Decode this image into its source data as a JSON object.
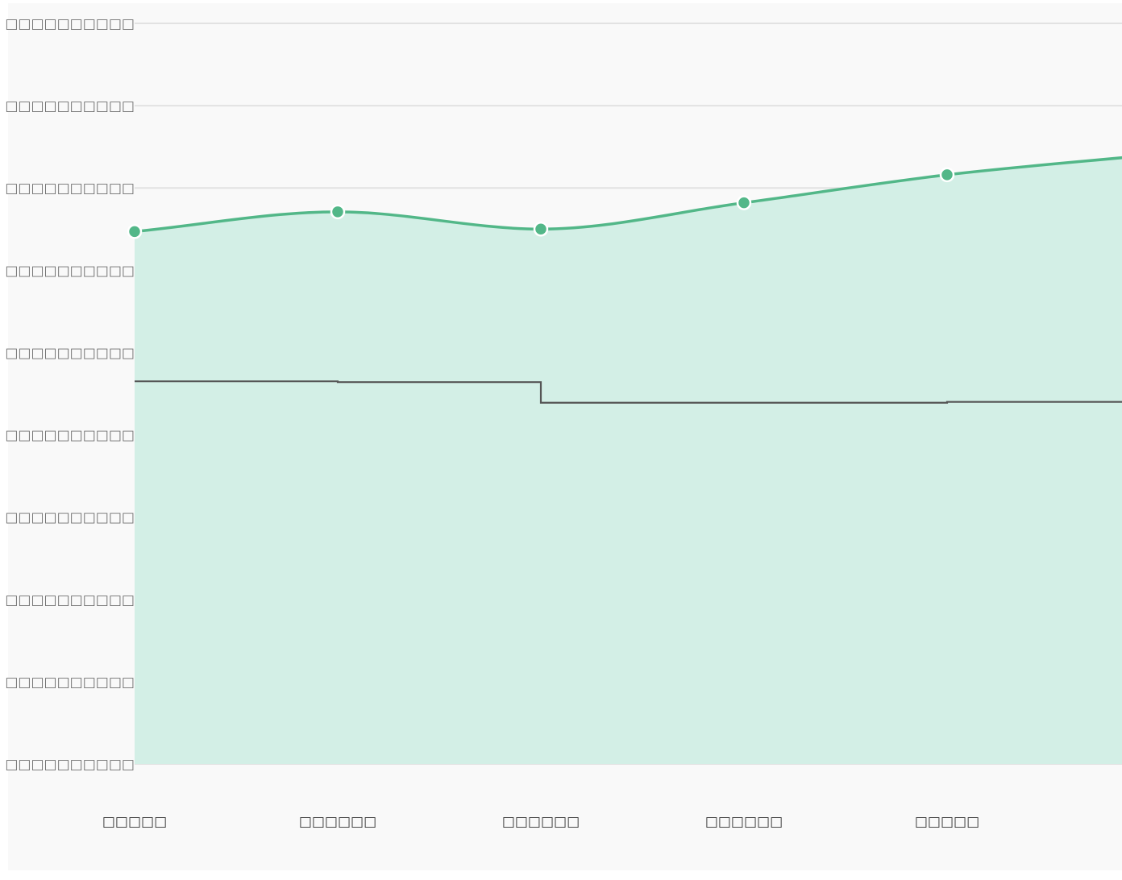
{
  "chart_data": {
    "type": "area",
    "title": "",
    "xlabel": "",
    "ylabel": "",
    "categories": [
      "□□□□□",
      "□□□□□□",
      "□□□□□□",
      "□□□□□□",
      "□□□□□",
      "□"
    ],
    "y_tick_labels": [
      "□□□□□□□□□□",
      "□□□□□□□□□□",
      "□□□□□□□□□□",
      "□□□□□□□□□□",
      "□□□□□□□□□□",
      "□□□□□□□□□□",
      "□□□□□□□□□□",
      "□□□□□□□□□□",
      "□□□□□□□□□□",
      "□□□□□□□□□□"
    ],
    "ylim": [
      0,
      9
    ],
    "grid": true,
    "series": [
      {
        "kind": "smooth-area-line",
        "color": "#52b788",
        "fill": "#d3efe6",
        "values": [
          6.47,
          6.71,
          6.5,
          6.82,
          7.16,
          7.4
        ]
      },
      {
        "kind": "step-line",
        "color": "#555555",
        "values": [
          4.65,
          4.64,
          4.39,
          4.39,
          4.4,
          4.4
        ]
      }
    ]
  }
}
